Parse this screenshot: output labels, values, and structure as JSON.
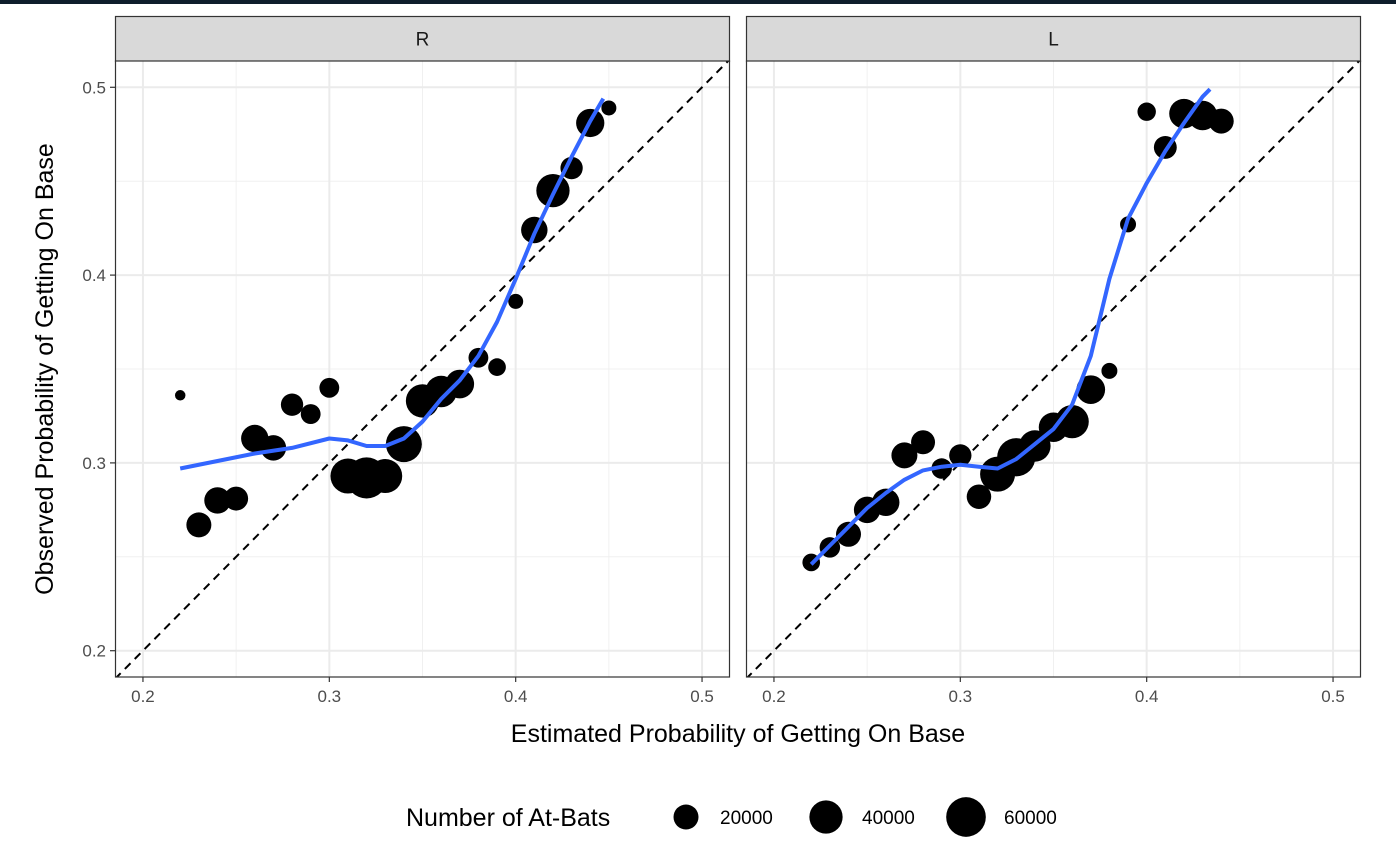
{
  "chart_data": {
    "type": "scatter",
    "xlabel": "Estimated Probability of Getting On Base",
    "ylabel": "Observed Probability of Getting On Base",
    "xlim": [
      0.185,
      0.515
    ],
    "ylim": [
      0.186,
      0.514
    ],
    "x_ticks": [
      0.2,
      0.3,
      0.4,
      0.5
    ],
    "y_ticks": [
      0.2,
      0.3,
      0.4,
      0.5
    ],
    "x_tick_labels": [
      "0.2",
      "0.3",
      "0.4",
      "0.5"
    ],
    "y_tick_labels": [
      "0.2",
      "0.3",
      "0.4",
      "0.5"
    ],
    "grid": true,
    "reference_line": "y = x (dashed)",
    "smooth_color": "#3366ff",
    "point_color": "#000000",
    "legend": {
      "title": "Number of At-Bats",
      "position": "bottom",
      "entries": [
        {
          "label": "20000",
          "value": 20000
        },
        {
          "label": "40000",
          "value": 40000
        },
        {
          "label": "60000",
          "value": 60000
        }
      ]
    },
    "panels": [
      {
        "label": "R",
        "points": [
          {
            "x": 0.22,
            "y": 0.336,
            "n": 1500
          },
          {
            "x": 0.23,
            "y": 0.267,
            "n": 20000
          },
          {
            "x": 0.24,
            "y": 0.28,
            "n": 23000
          },
          {
            "x": 0.25,
            "y": 0.281,
            "n": 18000
          },
          {
            "x": 0.26,
            "y": 0.313,
            "n": 25000
          },
          {
            "x": 0.27,
            "y": 0.308,
            "n": 21000
          },
          {
            "x": 0.28,
            "y": 0.331,
            "n": 15000
          },
          {
            "x": 0.29,
            "y": 0.326,
            "n": 11000
          },
          {
            "x": 0.3,
            "y": 0.34,
            "n": 11000
          },
          {
            "x": 0.31,
            "y": 0.293,
            "n": 45000
          },
          {
            "x": 0.32,
            "y": 0.292,
            "n": 65000
          },
          {
            "x": 0.33,
            "y": 0.293,
            "n": 42000
          },
          {
            "x": 0.34,
            "y": 0.31,
            "n": 48000
          },
          {
            "x": 0.35,
            "y": 0.333,
            "n": 40000
          },
          {
            "x": 0.36,
            "y": 0.338,
            "n": 35000
          },
          {
            "x": 0.37,
            "y": 0.342,
            "n": 28000
          },
          {
            "x": 0.38,
            "y": 0.356,
            "n": 11000
          },
          {
            "x": 0.39,
            "y": 0.351,
            "n": 8000
          },
          {
            "x": 0.4,
            "y": 0.386,
            "n": 5000
          },
          {
            "x": 0.41,
            "y": 0.424,
            "n": 23000
          },
          {
            "x": 0.42,
            "y": 0.445,
            "n": 40000
          },
          {
            "x": 0.43,
            "y": 0.457,
            "n": 15000
          },
          {
            "x": 0.44,
            "y": 0.481,
            "n": 27000
          },
          {
            "x": 0.45,
            "y": 0.489,
            "n": 5000
          }
        ],
        "smooth": [
          [
            0.22,
            0.297
          ],
          [
            0.24,
            0.301
          ],
          [
            0.26,
            0.305
          ],
          [
            0.28,
            0.308
          ],
          [
            0.3,
            0.313
          ],
          [
            0.31,
            0.312
          ],
          [
            0.32,
            0.309
          ],
          [
            0.33,
            0.309
          ],
          [
            0.34,
            0.313
          ],
          [
            0.35,
            0.322
          ],
          [
            0.36,
            0.334
          ],
          [
            0.37,
            0.344
          ],
          [
            0.38,
            0.357
          ],
          [
            0.39,
            0.375
          ],
          [
            0.4,
            0.398
          ],
          [
            0.41,
            0.422
          ],
          [
            0.42,
            0.443
          ],
          [
            0.43,
            0.463
          ],
          [
            0.44,
            0.482
          ],
          [
            0.447,
            0.494
          ]
        ]
      },
      {
        "label": "L",
        "points": [
          {
            "x": 0.22,
            "y": 0.247,
            "n": 8000
          },
          {
            "x": 0.23,
            "y": 0.255,
            "n": 12000
          },
          {
            "x": 0.24,
            "y": 0.262,
            "n": 20000
          },
          {
            "x": 0.25,
            "y": 0.275,
            "n": 23000
          },
          {
            "x": 0.26,
            "y": 0.279,
            "n": 25000
          },
          {
            "x": 0.27,
            "y": 0.304,
            "n": 22000
          },
          {
            "x": 0.28,
            "y": 0.311,
            "n": 18000
          },
          {
            "x": 0.29,
            "y": 0.297,
            "n": 12000
          },
          {
            "x": 0.3,
            "y": 0.304,
            "n": 15000
          },
          {
            "x": 0.31,
            "y": 0.282,
            "n": 19000
          },
          {
            "x": 0.32,
            "y": 0.294,
            "n": 45000
          },
          {
            "x": 0.33,
            "y": 0.303,
            "n": 55000
          },
          {
            "x": 0.34,
            "y": 0.309,
            "n": 35000
          },
          {
            "x": 0.35,
            "y": 0.319,
            "n": 30000
          },
          {
            "x": 0.36,
            "y": 0.322,
            "n": 40000
          },
          {
            "x": 0.37,
            "y": 0.339,
            "n": 28000
          },
          {
            "x": 0.38,
            "y": 0.349,
            "n": 6000
          },
          {
            "x": 0.39,
            "y": 0.427,
            "n": 6000
          },
          {
            "x": 0.4,
            "y": 0.487,
            "n": 9000
          },
          {
            "x": 0.41,
            "y": 0.468,
            "n": 16000
          },
          {
            "x": 0.42,
            "y": 0.486,
            "n": 30000
          },
          {
            "x": 0.43,
            "y": 0.485,
            "n": 30000
          },
          {
            "x": 0.44,
            "y": 0.482,
            "n": 20000
          }
        ],
        "smooth": [
          [
            0.22,
            0.246
          ],
          [
            0.23,
            0.256
          ],
          [
            0.24,
            0.266
          ],
          [
            0.25,
            0.276
          ],
          [
            0.26,
            0.284
          ],
          [
            0.27,
            0.291
          ],
          [
            0.28,
            0.296
          ],
          [
            0.29,
            0.298
          ],
          [
            0.3,
            0.299
          ],
          [
            0.31,
            0.298
          ],
          [
            0.32,
            0.297
          ],
          [
            0.33,
            0.302
          ],
          [
            0.34,
            0.31
          ],
          [
            0.35,
            0.318
          ],
          [
            0.36,
            0.331
          ],
          [
            0.37,
            0.357
          ],
          [
            0.38,
            0.398
          ],
          [
            0.39,
            0.43
          ],
          [
            0.4,
            0.449
          ],
          [
            0.41,
            0.466
          ],
          [
            0.42,
            0.481
          ],
          [
            0.43,
            0.495
          ],
          [
            0.434,
            0.499
          ]
        ]
      }
    ]
  }
}
